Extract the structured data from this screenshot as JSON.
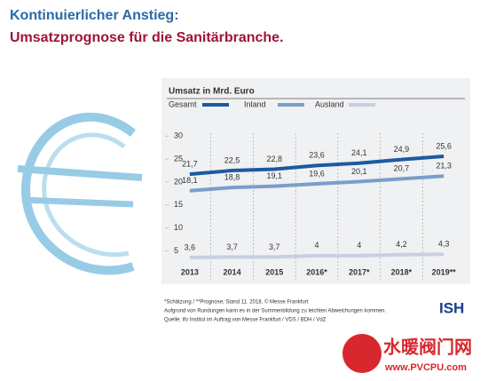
{
  "chart_data": {
    "type": "line",
    "title": "Kontinuierlicher Anstieg:",
    "subtitle": "Umsatzprognose für die Sanitärbranche.",
    "y_axis_label": "Umsatz in Mrd. Euro",
    "categories": [
      "2013",
      "2014",
      "2015",
      "2016*",
      "2017*",
      "2018*",
      "2019**"
    ],
    "series": [
      {
        "name": "Gesamt",
        "color": "#1c5aa0",
        "values": [
          21.7,
          22.5,
          22.8,
          23.6,
          24.1,
          24.9,
          25.6
        ],
        "value_labels": [
          "21,7",
          "22,5",
          "22,8",
          "23,6",
          "24,1",
          "24,9",
          "25,6"
        ]
      },
      {
        "name": "Inland",
        "color": "#7b9dcb",
        "values": [
          18.1,
          18.8,
          19.1,
          19.6,
          20.1,
          20.7,
          21.3
        ],
        "value_labels": [
          "18,1",
          "18,8",
          "19,1",
          "19,6",
          "20,1",
          "20,7",
          "21,3"
        ]
      },
      {
        "name": "Ausland",
        "color": "#c8cfe2",
        "values": [
          3.6,
          3.7,
          3.7,
          4,
          4,
          4.2,
          4.3
        ],
        "value_labels": [
          "3,6",
          "3,7",
          "3,7",
          "4",
          "4",
          "4,2",
          "4,3"
        ]
      }
    ],
    "ylim": [
      3,
      31
    ],
    "yticks": [
      5,
      10,
      15,
      20,
      25,
      30
    ],
    "notes": [
      "*Schätzung / **Prognose; Stand 11. 2018, © Messe Frankfurt",
      "Aufgrund von Rundungen kann es in der Summenbildung zu leichten Abweichungen kommen.",
      "Quelle: ifo Institut im Auftrag von Messe Frankfurt / VDS / BDH / VdZ"
    ],
    "logo": "ISH",
    "watermark": "水暖阀门网",
    "watermark_url": "www.PVCPU.com"
  }
}
